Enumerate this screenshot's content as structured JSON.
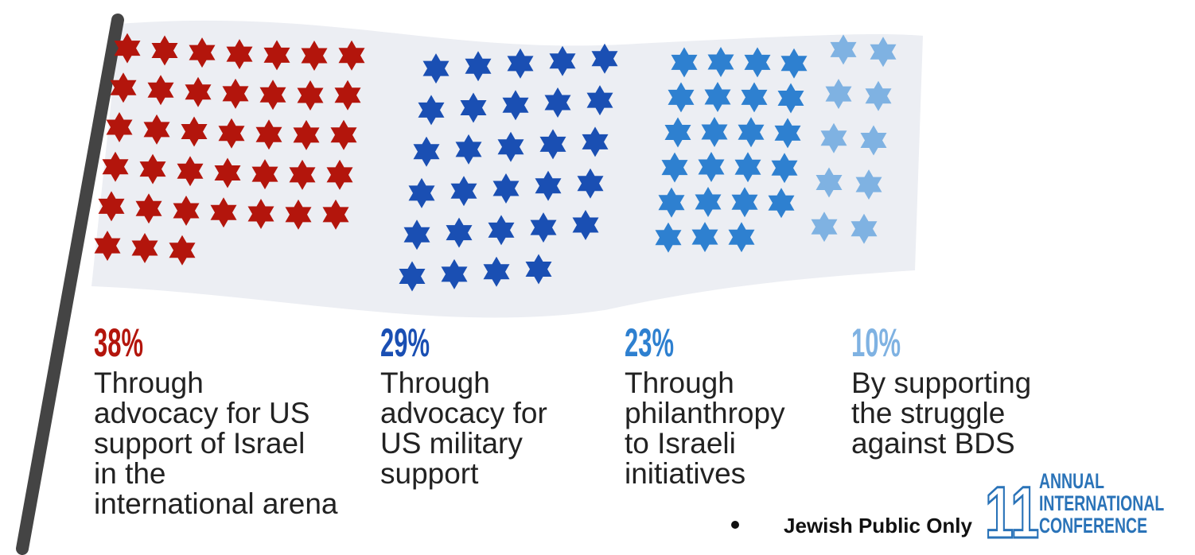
{
  "chart_data": {
    "type": "pictogram",
    "categories": [
      [
        "Through",
        "advocacy for US",
        "support of Israel",
        "in the",
        "international arena"
      ],
      [
        "Through",
        "advocacy for",
        "US military",
        "support"
      ],
      [
        "Through",
        "philanthropy",
        "to Israeli",
        "initiatives"
      ],
      [
        "By supporting",
        "the struggle",
        "against BDS"
      ]
    ],
    "values": [
      38,
      29,
      23,
      10
    ],
    "value_labels": [
      "38%",
      "29%",
      "23%",
      "10%"
    ],
    "colors": [
      "#b3150c",
      "#1a4fb3",
      "#2e80d0",
      "#7fb2e2"
    ],
    "footnote": "Jewish Public Only",
    "logo_number": "11",
    "logo_text": [
      "ANNUAL",
      "INTERNATIONAL",
      "CONFERENCE"
    ]
  }
}
